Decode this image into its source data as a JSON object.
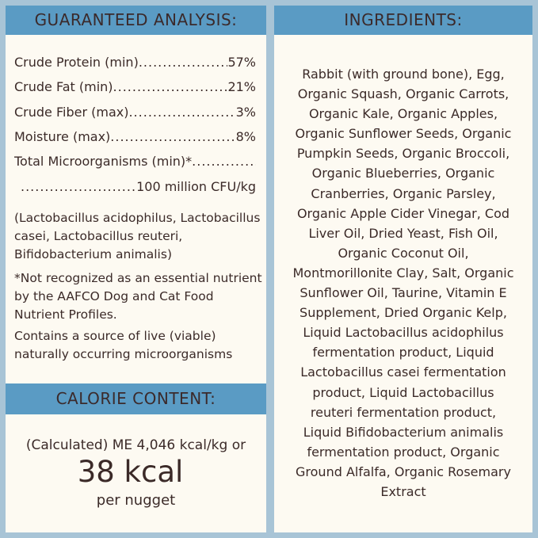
{
  "colors": {
    "background": "#a8c4d6",
    "header": "#5a9bc4",
    "panel": "#fdfaf2",
    "text": "#3b2a28"
  },
  "guaranteed": {
    "title": "GUARANTEED ANALYSIS:",
    "rows": [
      {
        "label": "Crude Protein (min)",
        "value": "57%"
      },
      {
        "label": "Crude Fat (min)",
        "value": "21%"
      },
      {
        "label": "Crude Fiber (max)",
        "value": "3%"
      },
      {
        "label": "Moisture (max)",
        "value": "8%"
      },
      {
        "label": "Total Microorganisms (min)*",
        "value": ""
      }
    ],
    "micro_value": "100 million CFU/kg",
    "strains": "(Lactobacillus acidophilus, Lactobacillus casei, Lactobacillus reuteri, Bifidobacterium animalis)",
    "footnote": "*Not recognized as an essential nutrient by the AAFCO Dog and Cat Food Nutrient Profiles.",
    "live_note": "Contains a source of live (viable) naturally occurring microorganisms"
  },
  "calorie": {
    "title": "CALORIE CONTENT:",
    "line1": "(Calculated) ME 4,046 kcal/kg or",
    "big": "38 kcal",
    "line3": "per nugget"
  },
  "ingredients": {
    "title": "INGREDIENTS:",
    "lines": [
      "Rabbit (with ground bone), Egg,",
      "Organic Squash, Organic Carrots,",
      "Organic Kale, Organic Apples,",
      "Organic Sunflower Seeds, Organic",
      "Pumpkin Seeds, Organic Broccoli,",
      "Organic Blueberries, Organic",
      "Cranberries, Organic Parsley,",
      "Organic Apple Cider Vinegar, Cod",
      "Liver Oil, Dried Yeast, Fish Oil,",
      "Organic Coconut Oil,",
      "Montmorillonite Clay, Salt, Organic",
      "Sunflower Oil, Taurine, Vitamin E",
      "Supplement, Dried Organic Kelp,",
      "Liquid Lactobacillus acidophilus",
      "fermentation product, Liquid",
      "Lactobacillus casei fermentation",
      "product, Liquid Lactobacillus",
      "reuteri fermentation product,",
      "Liquid Bifidobacterium animalis",
      "fermentation product, Organic",
      "Ground Alfalfa, Organic Rosemary",
      "Extract"
    ]
  }
}
